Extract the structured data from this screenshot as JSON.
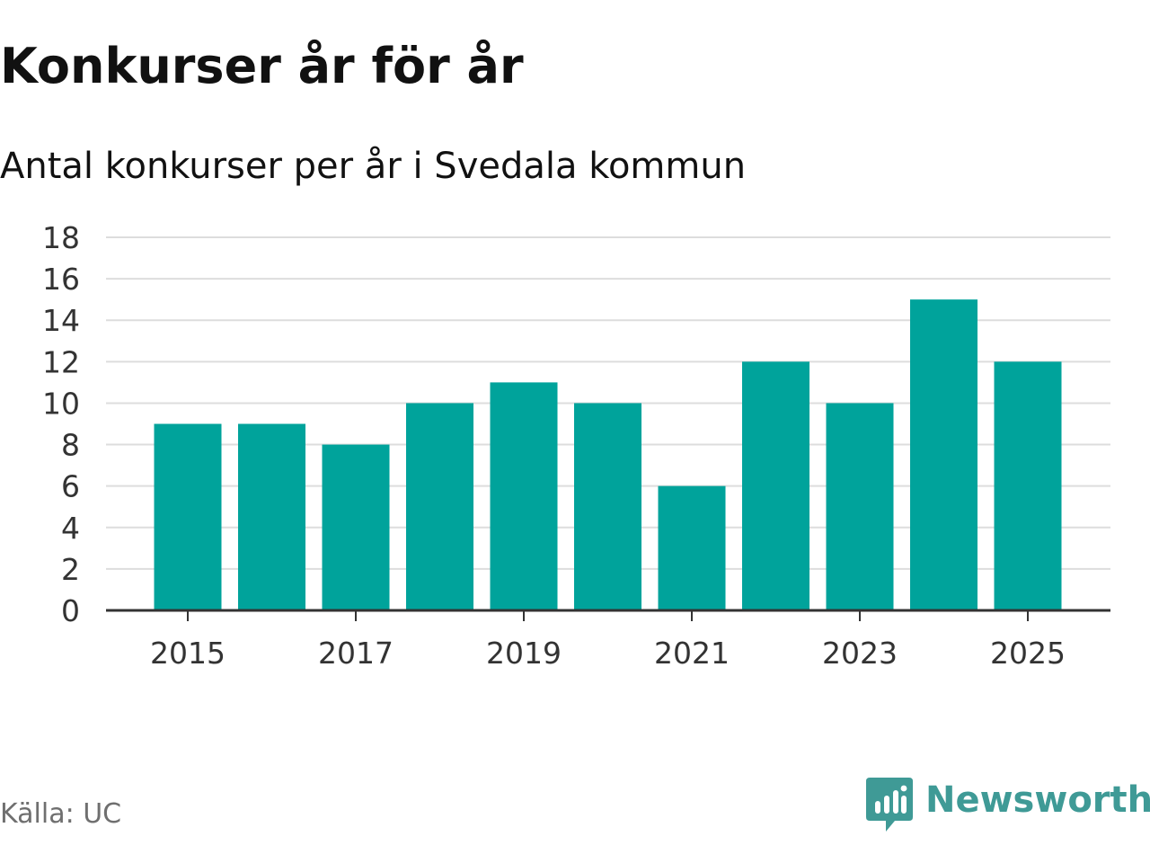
{
  "header": {
    "title": "Konkurser år för år",
    "subtitle": "Antal konkurser per år i Svedala kommun"
  },
  "footer": {
    "source": "Källa: UC",
    "brand": "Newsworthy"
  },
  "colors": {
    "bar": "#00a39b",
    "grid": "#dddddd",
    "axis": "#333333",
    "brand": "#3f9a96"
  },
  "chart_data": {
    "type": "bar",
    "title": "Konkurser år för år",
    "subtitle": "Antal konkurser per år i Svedala kommun",
    "xlabel": "",
    "ylabel": "",
    "categories": [
      "2015",
      "2016",
      "2017",
      "2018",
      "2019",
      "2020",
      "2021",
      "2022",
      "2023",
      "2024",
      "2025"
    ],
    "values": [
      9,
      9,
      8,
      10,
      11,
      10,
      6,
      12,
      10,
      15,
      12
    ],
    "x_tick_labels": [
      "2015",
      "2017",
      "2019",
      "2021",
      "2023",
      "2025"
    ],
    "ylim": [
      0,
      18
    ],
    "y_ticks": [
      0,
      2,
      4,
      6,
      8,
      10,
      12,
      14,
      16,
      18
    ],
    "grid": true,
    "legend": "none"
  }
}
